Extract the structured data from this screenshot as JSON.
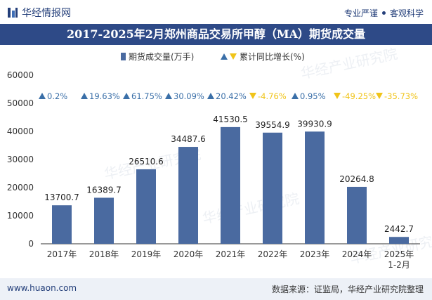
{
  "header": {
    "brand": "华经情报网",
    "tagline_left": "专业严谨",
    "tagline_right": "客观科学"
  },
  "chart_data": {
    "type": "bar",
    "title": "2017-2025年2月郑州商品交易所甲醇（MA）期货成交量",
    "categories": [
      "2017年",
      "2018年",
      "2019年",
      "2020年",
      "2021年",
      "2022年",
      "2023年",
      "2024年",
      "2025年\n1-2月"
    ],
    "series": [
      {
        "name": "期货成交量(万手)",
        "color": "#4a6aa0",
        "values": [
          13700.7,
          16389.7,
          26510.6,
          34487.6,
          41530.5,
          39554.9,
          39930.9,
          20264.8,
          2442.7
        ],
        "labels": [
          "13700.7",
          "16389.7",
          "26510.6",
          "34487.6",
          "41530.5",
          "39554.9",
          "39930.9",
          "20264.8",
          "2442.7"
        ]
      }
    ],
    "growth": {
      "name": "累计同比增长(%)",
      "values": [
        0.2,
        19.63,
        61.75,
        30.09,
        20.42,
        -4.76,
        0.95,
        -49.25,
        -35.73
      ],
      "labels": [
        "0.2%",
        "19.63%",
        "61.75%",
        "30.09%",
        "20.42%",
        "-4.76%",
        "0.95%",
        "-49.25%",
        "-35.73%"
      ],
      "up_color": "#3a6fa8",
      "down_color": "#f0c419"
    },
    "ylim": [
      0,
      60000
    ],
    "yticks": [
      "0",
      "10000",
      "20000",
      "30000",
      "40000",
      "50000",
      "60000"
    ],
    "legend_position": "top"
  },
  "watermark": "华经产业研究院",
  "footer": {
    "website": "www.huaon.com",
    "source": "数据来源：证监局，华经产业研究院整理"
  }
}
